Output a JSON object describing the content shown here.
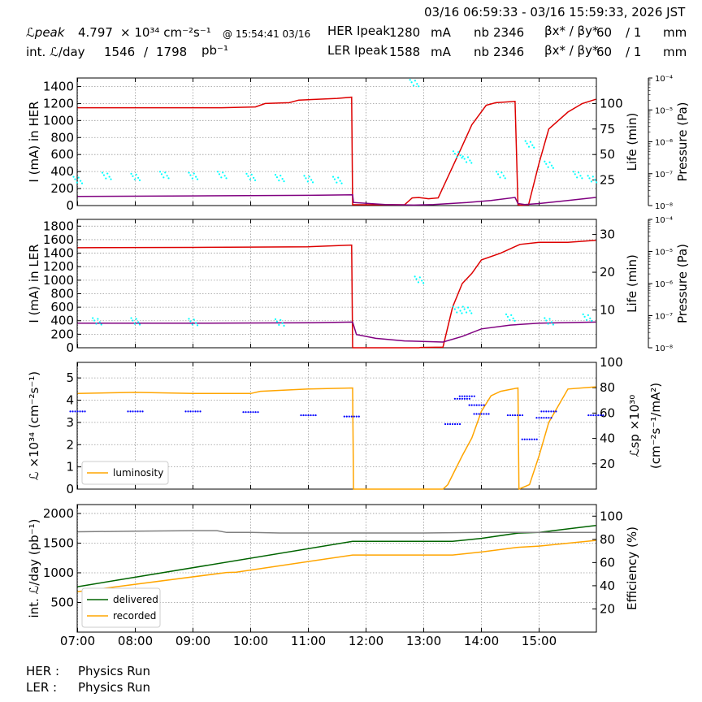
{
  "header": {
    "time_range": "03/16 06:59:33 - 03/16 15:59:33, 2026 JST",
    "lpeak_label": "ℒpeak",
    "lpeak_value": "4.797",
    "lpeak_unit": "× 10³⁴ cm⁻²s⁻¹",
    "lpeak_time": "@ 15:54:41 03/16",
    "intl_label": "int. ℒ/day",
    "intl_value1": "1546",
    "intl_sep": "/",
    "intl_value2": "1798",
    "intl_unit": "pb⁻¹",
    "her_label": "HER Ipeak",
    "her_ipeak": "1280",
    "her_unit": "mA",
    "ler_label": "LER Ipeak",
    "ler_ipeak": "1588",
    "ler_unit": "mA",
    "nb_label": "nb",
    "her_nb": "2346",
    "ler_nb": "2346",
    "beta_label": "βx* / βy*",
    "beta_x": "60",
    "beta_y": "/ 1",
    "beta_unit": "mm"
  },
  "footer": {
    "her_label": "HER :",
    "her_status": "Physics Run",
    "ler_label": "LER :",
    "ler_status": "Physics Run"
  },
  "colors": {
    "current": "#dd0000",
    "life": "#800080",
    "pressure": "#00ffff",
    "luminosity": "#ffa500",
    "specific": "#0000ff",
    "delivered": "#006400",
    "recorded": "#ffa500",
    "efficiency": "#808080"
  },
  "chart_data": [
    {
      "type": "line",
      "ylabel": "I (mA) in HER",
      "ylabel_right": "Life (min)",
      "ylabel_pressure": "Pressure (Pa)",
      "xlim": [
        "06:59:33",
        "15:59:33"
      ],
      "ylim": [
        0,
        1500
      ],
      "yticks": [
        0,
        200,
        400,
        600,
        800,
        1000,
        1200,
        1400
      ],
      "ylim_right": [
        0,
        125
      ],
      "yticks_right": [
        25,
        50,
        75,
        100
      ],
      "pressure_ticks": [
        "10⁻⁸",
        "10⁻⁷",
        "10⁻⁶",
        "10⁻⁵",
        "10⁻⁴"
      ],
      "grid": true,
      "series": [
        {
          "role": "current",
          "x": [
            "07:00",
            "09:30",
            "10:05",
            "10:15",
            "10:40",
            "10:50",
            "11:30",
            "11:45",
            "11:46",
            "12:40",
            "12:48",
            "12:55",
            "13:05",
            "13:15",
            "13:40",
            "13:50",
            "14:05",
            "14:15",
            "14:35",
            "14:38",
            "14:40",
            "14:49",
            "15:00",
            "15:10",
            "15:30",
            "15:45",
            "15:59"
          ],
          "y": [
            1150,
            1150,
            1160,
            1200,
            1210,
            1240,
            1260,
            1275,
            10,
            10,
            90,
            95,
            80,
            90,
            700,
            950,
            1180,
            1210,
            1225,
            10,
            5,
            10,
            500,
            900,
            1100,
            1200,
            1250
          ]
        },
        {
          "role": "life",
          "x": [
            "07:00",
            "09:00",
            "11:00",
            "11:46",
            "11:47",
            "12:20",
            "12:50",
            "13:10",
            "13:45",
            "14:10",
            "14:35",
            "14:38",
            "14:45",
            "15:00",
            "15:30",
            "15:59"
          ],
          "y": [
            9,
            9.5,
            10,
            10.5,
            3,
            1,
            0.5,
            1,
            3,
            5,
            8,
            2,
            1,
            2,
            5,
            8
          ]
        },
        {
          "role": "pressure",
          "x": [
            "07:00",
            "07:30",
            "08:00",
            "08:30",
            "09:00",
            "09:30",
            "10:00",
            "10:30",
            "11:00",
            "11:30",
            "12:50",
            "13:35",
            "13:45",
            "14:20",
            "14:50",
            "15:10",
            "15:40",
            "15:55"
          ],
          "y": [
            25,
            29,
            28,
            30,
            29,
            30,
            28,
            27,
            26,
            25,
            120,
            50,
            45,
            30,
            60,
            40,
            30,
            26
          ]
        }
      ]
    },
    {
      "type": "line",
      "ylabel": "I (mA) in LER",
      "ylabel_right": "Life (min)",
      "ylabel_pressure": "Pressure (Pa)",
      "xlim": [
        "06:59:33",
        "15:59:33"
      ],
      "ylim": [
        0,
        1900
      ],
      "yticks": [
        0,
        200,
        400,
        600,
        800,
        1000,
        1200,
        1400,
        1600,
        1800
      ],
      "ylim_right": [
        0,
        34
      ],
      "yticks_right": [
        10,
        20,
        30
      ],
      "pressure_ticks": [
        "10⁻⁸",
        "10⁻⁷",
        "10⁻⁶",
        "10⁻⁵",
        "10⁻⁴"
      ],
      "grid": true,
      "series": [
        {
          "role": "current",
          "x": [
            "07:00",
            "09:00",
            "10:00",
            "11:00",
            "11:45",
            "11:46",
            "12:40",
            "12:55",
            "12:57",
            "13:20",
            "13:30",
            "13:40",
            "13:50",
            "14:00",
            "14:20",
            "14:40",
            "15:00",
            "15:30",
            "15:59"
          ],
          "y": [
            1480,
            1485,
            1490,
            1495,
            1520,
            0,
            0,
            0,
            5,
            10,
            600,
            950,
            1100,
            1300,
            1400,
            1530,
            1560,
            1560,
            1590
          ]
        },
        {
          "role": "life",
          "x": [
            "07:00",
            "09:00",
            "11:00",
            "11:46",
            "11:50",
            "12:10",
            "12:40",
            "13:20",
            "13:40",
            "14:00",
            "14:30",
            "15:00",
            "15:59"
          ],
          "y": [
            6.5,
            6.5,
            6.6,
            6.8,
            3.5,
            2.5,
            1.8,
            1.5,
            3,
            5,
            6,
            6.5,
            6.8
          ]
        },
        {
          "role": "pressure",
          "x": [
            "07:20",
            "08:00",
            "09:00",
            "10:30",
            "12:55",
            "13:35",
            "13:45",
            "14:30",
            "15:10",
            "15:50"
          ],
          "y": [
            7,
            7,
            6.8,
            6.7,
            18,
            10,
            10,
            8,
            7,
            8
          ]
        }
      ]
    },
    {
      "type": "line",
      "ylabel": "ℒ ×10³⁴ (cm⁻²s⁻¹)",
      "ylabel_right": "ℒsp ×10³⁰ (cm⁻²s⁻¹/mA²)",
      "xlim": [
        "06:59:33",
        "15:59:33"
      ],
      "ylim": [
        0,
        5.7
      ],
      "yticks": [
        0,
        1,
        2,
        3,
        4,
        5
      ],
      "ylim_right": [
        0,
        100
      ],
      "yticks_right": [
        20,
        40,
        60,
        80,
        100
      ],
      "grid": true,
      "legend": {
        "position": "bottom-left",
        "entries": [
          "luminosity"
        ]
      },
      "series": [
        {
          "name": "luminosity",
          "role": "luminosity",
          "x": [
            "07:00",
            "08:00",
            "09:00",
            "10:00",
            "10:10",
            "11:00",
            "11:46",
            "11:47",
            "13:20",
            "13:25",
            "13:40",
            "13:50",
            "14:00",
            "14:10",
            "14:20",
            "14:38",
            "14:39",
            "14:50",
            "15:00",
            "15:10",
            "15:30",
            "15:59"
          ],
          "y": [
            4.3,
            4.35,
            4.3,
            4.3,
            4.4,
            4.5,
            4.55,
            0,
            0,
            0.2,
            1.5,
            2.3,
            3.5,
            4.2,
            4.4,
            4.55,
            0,
            0.2,
            1.5,
            3,
            4.5,
            4.6
          ]
        },
        {
          "role": "specific",
          "x": [
            "07:00",
            "08:00",
            "09:00",
            "10:00",
            "11:00",
            "11:45",
            "13:30",
            "13:40",
            "13:45",
            "13:55",
            "14:00",
            "14:35",
            "14:50",
            "15:05",
            "15:10",
            "15:59"
          ],
          "y": [
            60,
            60,
            60,
            59.5,
            57,
            56,
            50,
            70,
            72,
            65,
            58,
            57,
            38,
            55,
            60,
            57
          ]
        }
      ]
    },
    {
      "type": "line",
      "ylabel": "int. ℒ/day (pb⁻¹)",
      "ylabel_right": "Efficiency (%)",
      "xlim": [
        "06:59:33",
        "15:59:33"
      ],
      "xticks": [
        "07:00",
        "08:00",
        "09:00",
        "10:00",
        "11:00",
        "12:00",
        "13:00",
        "14:00",
        "15:00"
      ],
      "ylim": [
        0,
        2150
      ],
      "yticks": [
        500,
        1000,
        1500,
        2000
      ],
      "ylim_right": [
        0,
        110
      ],
      "yticks_right": [
        20,
        40,
        60,
        80,
        100
      ],
      "grid": true,
      "legend": {
        "position": "bottom-left",
        "entries": [
          "delivered",
          "recorded"
        ]
      },
      "series": [
        {
          "name": "delivered",
          "role": "delivered",
          "x": [
            "07:00",
            "11:46",
            "13:30",
            "14:00",
            "14:38",
            "15:00",
            "15:59"
          ],
          "y": [
            765,
            1530,
            1530,
            1580,
            1670,
            1680,
            1798
          ]
        },
        {
          "name": "recorded",
          "role": "recorded",
          "x": [
            "07:00",
            "09:35",
            "09:45",
            "11:46",
            "13:30",
            "14:00",
            "14:38",
            "15:00",
            "15:59"
          ],
          "y": [
            680,
            1005,
            1010,
            1300,
            1300,
            1350,
            1430,
            1450,
            1546
          ]
        },
        {
          "role": "efficiency",
          "x": [
            "07:00",
            "08:00",
            "09:00",
            "09:25",
            "09:35",
            "10:00",
            "10:30",
            "11:00",
            "12:00",
            "13:00",
            "14:00",
            "15:00",
            "15:59"
          ],
          "y": [
            86.5,
            87,
            87.5,
            87.5,
            86,
            86,
            85.5,
            85.5,
            85.5,
            85.5,
            86,
            86,
            86
          ]
        }
      ]
    }
  ]
}
